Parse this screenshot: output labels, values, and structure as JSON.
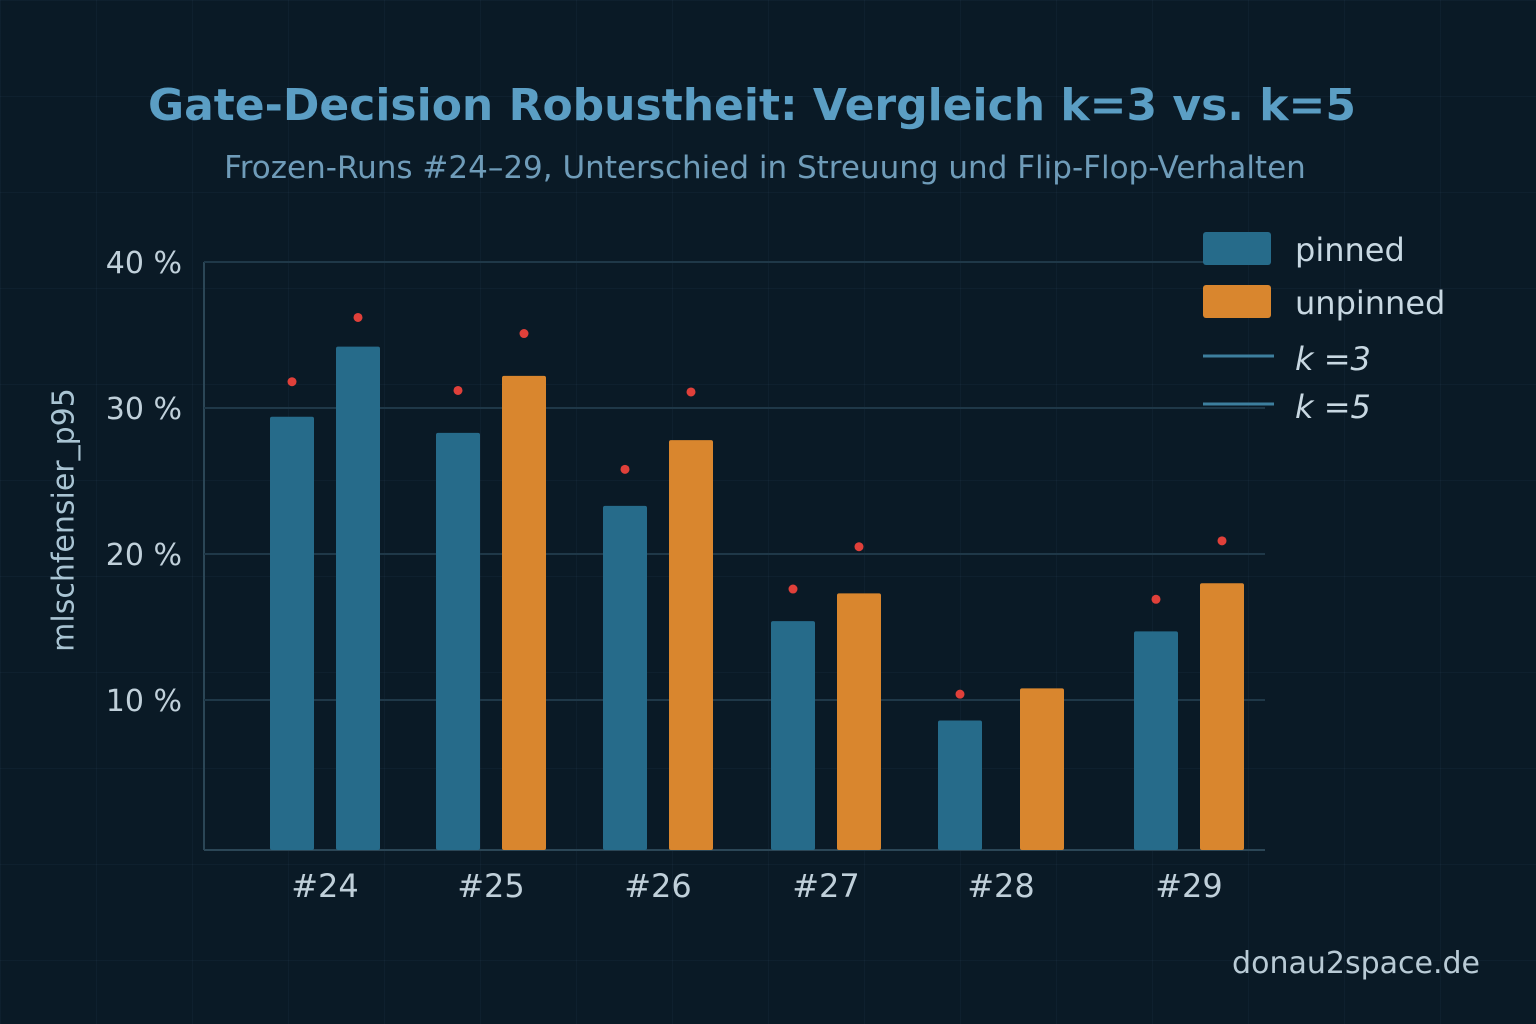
{
  "chart_data": {
    "type": "bar",
    "title": "Gate-Decision Robustheit: Vergleich k=3 vs. k=5",
    "subtitle": "Frozen-Runs #24–29, Unterschied in Streuung und Flip-Flop-Verhalten",
    "xlabel": "",
    "ylabel": "mlschfensier_p95",
    "ylim": [
      0,
      40
    ],
    "yticks": [
      "10 %",
      "20 %",
      "30 %",
      "40 %"
    ],
    "ytick_values": [
      10,
      20,
      30,
      40
    ],
    "grid": true,
    "legend_placement": "top-right",
    "categories": [
      "#24",
      "#25",
      "#26",
      "#27",
      "#28",
      "#29"
    ],
    "series": [
      {
        "name": "pinned",
        "color": "#266b8a",
        "values": [
          29.4,
          28.3,
          23.3,
          15.4,
          8.6,
          14.7
        ],
        "markers": [
          31.8,
          31.2,
          25.8,
          17.6,
          10.4,
          16.9
        ]
      },
      {
        "name": "unpinned",
        "color": "#d9862e",
        "values": [
          34.2,
          32.2,
          27.8,
          17.3,
          10.8,
          18.0
        ],
        "markers": [
          36.2,
          35.1,
          31.1,
          20.5,
          null,
          20.9
        ],
        "point_colors": [
          "#266b8a",
          null,
          null,
          null,
          null,
          null
        ]
      }
    ],
    "marker_color": "#e0403a",
    "legend": [
      {
        "label": "pinned",
        "kind": "box",
        "color": "#266b8a"
      },
      {
        "label": "unpinned",
        "kind": "box",
        "color": "#d9862e"
      },
      {
        "label": "k =3",
        "kind": "line",
        "color": "#3d7f9e"
      },
      {
        "label": "k =5",
        "kind": "line",
        "color": "#3d7f9e"
      }
    ]
  },
  "watermark": "donau2space.de"
}
